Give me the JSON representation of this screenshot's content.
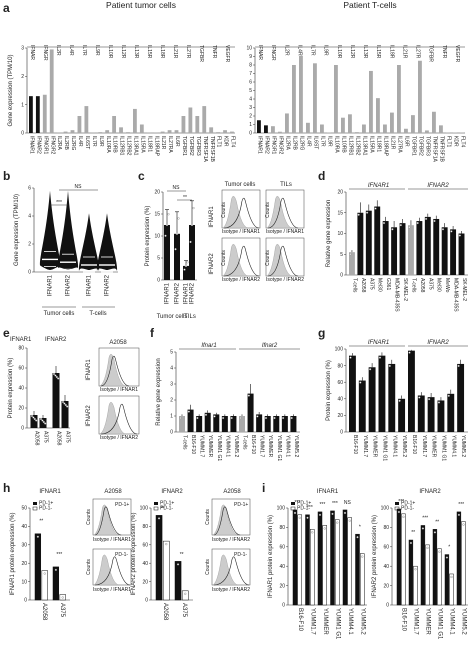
{
  "panels": {
    "a": "a",
    "b": "b",
    "c": "c",
    "d": "d",
    "e": "e",
    "f": "f",
    "g": "g",
    "h": "h",
    "i": "i"
  },
  "chart_data": [
    {
      "id": "a1",
      "type": "bar",
      "title": "Patient tumor cells",
      "ylabel": "Gene expression (TPM/10)",
      "ylim": [
        0,
        3
      ],
      "yticks": [
        "0",
        "1",
        "2",
        "3"
      ],
      "categories": [
        "IFNAR1",
        "IFNAR2",
        "IFNGR1",
        "IFNGR2",
        "IL2RA",
        "IL2RB",
        "IL2RG",
        "IL4R",
        "IL6ST",
        "IL7R",
        "IL9R",
        "IL10RA",
        "IL10RB",
        "IL12RB1",
        "IL12RB2",
        "IL13RA1",
        "IL15RA",
        "IL18R1",
        "IL18RAP",
        "IL21R",
        "IL27RA",
        "IL6R",
        "TGFBR1",
        "TGFBR2",
        "TGFBR3",
        "TNFRSF1A",
        "TNFRSF1B",
        "FLT1",
        "KDR",
        "FLT4"
      ],
      "values": [
        1.3,
        1.3,
        1.35,
        2.95,
        0.02,
        0.05,
        0.1,
        0.6,
        0.95,
        0.02,
        0.03,
        0.1,
        0.6,
        0.2,
        0.03,
        0.85,
        0.3,
        0.02,
        0.02,
        0.05,
        0.1,
        0.1,
        0.6,
        0.9,
        0.6,
        0.95,
        0.2,
        0.03,
        0.1,
        0.05
      ],
      "groups": [
        "IFNAR",
        "IFNGR",
        "IL2R",
        "IL4R",
        "IL7R",
        "IL9R",
        "IL10R",
        "IL12R",
        "IL13R",
        "IL15R",
        "IL18R",
        "IL21R",
        "IL27R",
        "TGFBR",
        "TNFR",
        "VEGFR"
      ]
    },
    {
      "id": "a2",
      "type": "bar",
      "title": "Patient T-cells",
      "ylim": [
        0,
        10
      ],
      "yticks": [
        "0",
        "1",
        "2",
        "3",
        "4",
        "5",
        "6",
        "7",
        "8",
        "9",
        "10"
      ],
      "categories": [
        "IFNAR1",
        "IFNAR2",
        "IFNGR1",
        "IFNGR2",
        "IL2RA",
        "IL2RB",
        "IL2RG",
        "IL4R",
        "IL6ST",
        "IL7R",
        "IL9R",
        "IL10RA",
        "IL10RB",
        "IL12RB1",
        "IL12RB2",
        "IL13RA1",
        "IL15RA",
        "IL18R1",
        "IL18RAP",
        "IL21R",
        "IL27RA",
        "IL6R",
        "TGFBR1",
        "TGFBR2",
        "TGFBR3",
        "TNFRSF1A",
        "TNFRSF1B",
        "FLT1",
        "KDR",
        "FLT4"
      ],
      "values": [
        1.5,
        0.9,
        0.8,
        0.15,
        2.3,
        8.0,
        9.1,
        1.2,
        8.2,
        1.0,
        0.05,
        8.0,
        1.8,
        2.2,
        0.1,
        1.0,
        7.3,
        4.1,
        1.0,
        2.4,
        8.0,
        0.5,
        2.1,
        8.5,
        0.3,
        2.5,
        0.9,
        0.05,
        0.05,
        0.05
      ],
      "groups": [
        "IFNAR",
        "IFNGR",
        "IL2R",
        "IL4R",
        "IL7R",
        "IL9R",
        "IL10R",
        "IL12R",
        "IL13R",
        "IL15R",
        "IL18R",
        "IL21R",
        "IL27R",
        "TGFBR",
        "TNFR",
        "VEGFR"
      ]
    },
    {
      "id": "b",
      "type": "violin",
      "ylabel": "Gene expression (TPM/10)",
      "ylim": [
        0,
        6
      ],
      "yticks": [
        "0",
        "2",
        "4",
        "6"
      ],
      "categories": [
        "IFNAR1",
        "IFNAR2",
        "IFNAR1",
        "IFNAR2"
      ],
      "groups": [
        "Tumor cells",
        "T-cells"
      ],
      "medians": [
        0.9,
        0.7,
        0.5,
        0.5
      ],
      "sig": [
        "***",
        "NS"
      ]
    },
    {
      "id": "c",
      "type": "bar",
      "ylabel": "Protein expression (%)",
      "ylim": [
        0,
        20
      ],
      "yticks": [
        "0",
        "5",
        "10",
        "15",
        "20"
      ],
      "categories": [
        "IFNAR1",
        "IFNAR2",
        "IFNAR1",
        "IFNAR2"
      ],
      "groups": [
        "Tumor cells",
        "TILs"
      ],
      "values": [
        12.5,
        10.5,
        3.2,
        12.5
      ],
      "errors": [
        3.5,
        5.0,
        1.2,
        5.5
      ],
      "sig": [
        "NS",
        "**"
      ]
    },
    {
      "id": "d",
      "type": "bar",
      "ylabel": "Relative gene expression",
      "ylim": [
        0,
        20
      ],
      "yticks": [
        "0",
        "5",
        "10",
        "15",
        "20"
      ],
      "subtitles": [
        "IFNAR1",
        "IFNAR2"
      ],
      "categories": [
        "T-cells",
        "A2058",
        "A375",
        "Mel30",
        "G361",
        "MDA-MB-435S",
        "SK-MEL-2",
        "T-cells",
        "A2058",
        "A375",
        "Mel30",
        "MeWo",
        "MDA-MB-435S",
        "SK-MEL-2"
      ],
      "values": [
        5.5,
        15,
        15.5,
        16.5,
        13,
        11.5,
        12.5,
        12,
        13,
        14,
        13.5,
        11.5,
        11,
        10
      ],
      "errors": [
        0.5,
        2.5,
        1.5,
        1.5,
        1.0,
        1.5,
        1.0,
        1.2,
        0.8,
        0.8,
        0.8,
        1.0,
        0.8,
        0.6
      ]
    },
    {
      "id": "e",
      "type": "bar",
      "ylabel": "Protein expression (%)",
      "ylim": [
        0,
        80
      ],
      "yticks": [
        "0",
        "20",
        "40",
        "60",
        "80"
      ],
      "legend": [
        "IFNAR1",
        "IFNAR2"
      ],
      "categories": [
        "A2058",
        "A375",
        "A2058",
        "A375"
      ],
      "values": [
        13,
        10,
        55,
        27
      ],
      "errors": [
        4,
        3,
        7,
        6
      ]
    },
    {
      "id": "f",
      "type": "bar",
      "ylabel": "Relative gene expression",
      "ylim": [
        0,
        5
      ],
      "yticks": [
        "0",
        "1",
        "2",
        "3",
        "4",
        "5"
      ],
      "subtitles": [
        "Ifnar1",
        "Ifnar2"
      ],
      "categories": [
        "T-cells",
        "B16-F10",
        "YUMM1.7",
        "YUMMER",
        "YUMM1 G1",
        "YUMM4.1",
        "YUMM5.2",
        "T-cells",
        "B16-F10",
        "YUMM1.7",
        "YUMMER",
        "YUMM1 G1",
        "YUMM4.1",
        "YUMM5.2"
      ],
      "values": [
        1.0,
        1.4,
        1.0,
        1.2,
        1.1,
        1.0,
        1.0,
        1.0,
        2.4,
        1.1,
        1.0,
        1.0,
        1.0,
        1.0
      ],
      "errors": [
        0.1,
        0.3,
        0.1,
        0.15,
        0.1,
        0.1,
        0.1,
        0.1,
        0.6,
        0.15,
        0.1,
        0.1,
        0.1,
        0.1
      ]
    },
    {
      "id": "g",
      "type": "bar",
      "ylabel": "Protein expression (%)",
      "ylim": [
        0,
        100
      ],
      "yticks": [
        "0",
        "20",
        "40",
        "60",
        "80",
        "100"
      ],
      "subtitles": [
        "IFNAR1",
        "IFNAR2"
      ],
      "categories": [
        "B16-F10",
        "YUMM1.7",
        "YUMMER",
        "YUMM1 G1",
        "YUMM4.1",
        "YUMM5.2",
        "B16-F10",
        "YUMM1.7",
        "YUMMER",
        "YUMM1 G1",
        "YUMM4.1",
        "YUMM5.2"
      ],
      "values": [
        92,
        62,
        78,
        92,
        82,
        40,
        98,
        44,
        42,
        38,
        46,
        82
      ],
      "errors": [
        3,
        4,
        5,
        4,
        5,
        4,
        1,
        4,
        5,
        4,
        5,
        5
      ]
    },
    {
      "id": "h1",
      "type": "bar",
      "title": "IFNAR1",
      "ylabel": "IFNAR1 protein expression (%)",
      "ylim": [
        0,
        50
      ],
      "yticks": [
        "0",
        "10",
        "20",
        "30",
        "40",
        "50"
      ],
      "legend": [
        "PD-1+",
        "PD-1-"
      ],
      "categories": [
        "A2058",
        "A375"
      ],
      "series": [
        {
          "name": "PD-1+",
          "values": [
            36,
            18
          ]
        },
        {
          "name": "PD-1-",
          "values": [
            16,
            3
          ]
        }
      ],
      "sig": [
        "**",
        "***"
      ]
    },
    {
      "id": "h2",
      "type": "bar",
      "title": "IFNAR2",
      "ylabel": "IFNAR2 protein expression (%)",
      "ylim": [
        0,
        100
      ],
      "yticks": [
        "0",
        "20",
        "40",
        "60",
        "80",
        "100"
      ],
      "legend": [
        "PD-1+",
        "PD-1-"
      ],
      "categories": [
        "A2058",
        "A375"
      ],
      "series": [
        {
          "name": "PD-1+",
          "values": [
            92,
            42
          ]
        },
        {
          "name": "PD-1-",
          "values": [
            64,
            10
          ]
        }
      ],
      "sig": [
        "**",
        "**"
      ]
    },
    {
      "id": "i1",
      "type": "bar",
      "title": "IFNAR1",
      "ylabel": "IFNAR1 protein expression (%)",
      "ylim": [
        0,
        100
      ],
      "yticks": [
        "0",
        "20",
        "40",
        "60",
        "80",
        "100"
      ],
      "legend": [
        "PD-1+",
        "PD-1-"
      ],
      "categories": [
        "B16-F10",
        "YUMM1.7",
        "YUMMER",
        "YUMM1 G1",
        "YUMM4.1",
        "YUMM5.2"
      ],
      "series": [
        {
          "name": "PD-1+",
          "values": [
            98,
            93,
            96,
            97,
            98,
            73
          ]
        },
        {
          "name": "PD-1-",
          "values": [
            93,
            78,
            82,
            88,
            90,
            53
          ]
        }
      ],
      "sig": [
        "***",
        "***",
        "***",
        "***",
        "NS",
        "*"
      ]
    },
    {
      "id": "i2",
      "type": "bar",
      "title": "IFNAR2",
      "ylabel": "IFNAR2 protein expression (%)",
      "ylim": [
        0,
        100
      ],
      "yticks": [
        "0",
        "20",
        "40",
        "60",
        "80",
        "100"
      ],
      "legend": [
        "PD-1+",
        "PD-1-"
      ],
      "categories": [
        "B16-F10",
        "YUMM1.7",
        "YUMMER",
        "YUMM1 G1",
        "YUMM4.1",
        "YUMM5.2"
      ],
      "series": [
        {
          "name": "PD-1+",
          "values": [
            99,
            67,
            82,
            78,
            52,
            96
          ]
        },
        {
          "name": "PD-1-",
          "values": [
            94,
            40,
            62,
            58,
            32,
            86
          ]
        }
      ],
      "sig": [
        "***",
        "**",
        "***",
        "**",
        "*",
        "***"
      ]
    }
  ],
  "flow": {
    "c": {
      "col1": "Tumor cells",
      "col2": "TILs",
      "row1": "IFNAR1",
      "row2": "IFNAR2",
      "yl": "Counts",
      "x1": "Isotype / IFNAR1",
      "x2": "Isotype / IFNAR2"
    },
    "e": {
      "title": "A2058",
      "row1": "IFNAR1",
      "row2": "IFNAR2",
      "x1": "Isotype / IFNAR1",
      "x2": "Isotype / IFNAR2"
    },
    "h1": {
      "title": "A2058",
      "top": "PD-1+",
      "bot": "PD-1-",
      "yl": "Counts",
      "x": "Isotype / IFNAR1"
    },
    "h2": {
      "title": "A2058",
      "top": "PD-1+",
      "bot": "PD-1-",
      "yl": "Counts",
      "x": "Isotype / IFNAR2"
    }
  }
}
